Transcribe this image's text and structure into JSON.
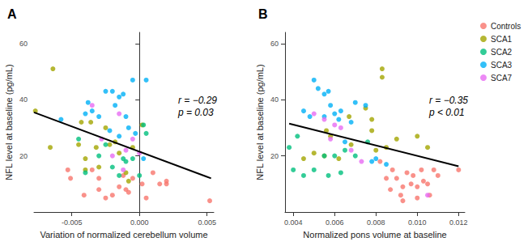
{
  "chart_data": [
    {
      "type": "scatter",
      "title": "A",
      "x_label": "Variation of normalized cerebellum volume",
      "y_label": "NFL level at baseline (pg/mL)",
      "xlim": [
        -0.0078,
        0.0055
      ],
      "xticks": [
        -0.005,
        {
          "value": 0,
          "label": "0.000"
        },
        0.005
      ],
      "ylim": [
        0,
        64
      ],
      "yticks": [
        20,
        40,
        60
      ],
      "grid": false,
      "legend": "right",
      "annotations": [
        "r = −0.29",
        "p = 0.03"
      ],
      "fit": {
        "x": [
          -0.0078,
          0.0053
        ],
        "y": [
          35.5,
          12
        ]
      },
      "series": [
        {
          "name": "Controls",
          "color": "#F8766D",
          "x": [
            -0.0053,
            -0.0051,
            -0.0041,
            -0.0035,
            -0.003,
            -0.003,
            -0.002,
            -0.0015,
            -0.001,
            -0.0008,
            -0.0005,
            0.0002,
            0.0005,
            0.001,
            0.0015,
            0.002,
            0.002,
            0.0052,
            -0.0025,
            -0.0012
          ],
          "y": [
            15,
            12,
            6,
            15,
            8,
            12,
            6,
            9,
            8,
            7,
            12,
            10,
            5,
            14,
            10,
            10,
            11,
            4,
            5,
            13
          ]
        },
        {
          "name": "SCA1",
          "color": "#A3A500",
          "x": [
            -0.0077,
            -0.0066,
            -0.0064,
            -0.0045,
            -0.0043,
            -0.004,
            -0.0036,
            -0.0032,
            -0.0025,
            -0.0022,
            -0.0018,
            -0.0015,
            -0.001,
            -0.0008,
            -0.0005,
            0.0002,
            -0.004,
            -0.003
          ],
          "y": [
            36,
            23,
            51,
            24,
            32,
            19,
            32,
            23,
            30,
            24,
            25,
            21,
            14,
            11,
            23,
            31,
            15,
            16
          ]
        },
        {
          "name": "SCA2",
          "color": "#00BF7D",
          "x": [
            -0.0045,
            -0.004,
            -0.003,
            -0.0025,
            -0.002,
            -0.0015,
            -0.001,
            -0.0005,
            0.0003,
            0.0005,
            -0.0012,
            0.0
          ],
          "y": [
            26,
            14,
            20,
            24,
            16,
            13,
            18,
            19,
            31,
            28,
            19,
            13
          ]
        },
        {
          "name": "SCA3",
          "color": "#00B0F6",
          "x": [
            -0.0058,
            -0.004,
            -0.0038,
            -0.0035,
            -0.003,
            -0.0025,
            -0.002,
            -0.0018,
            -0.0015,
            -0.0012,
            -0.001,
            -0.0008,
            -0.0005,
            -0.0003,
            0.0005,
            0.0003,
            -0.0015,
            -0.0022
          ],
          "y": [
            33,
            35,
            39,
            36,
            34,
            43,
            43,
            38,
            41,
            42,
            34,
            30,
            47,
            28,
            47,
            19,
            27,
            29
          ]
        },
        {
          "name": "SCA7",
          "color": "#E76BF3",
          "x": [
            -0.0035,
            -0.0028,
            -0.002,
            -0.0015,
            -0.001,
            -0.0005,
            0.0,
            -0.0012
          ],
          "y": [
            38,
            26,
            20,
            35,
            22,
            26,
            21,
            15
          ]
        }
      ]
    },
    {
      "type": "scatter",
      "title": "B",
      "x_label": "Normalized pons volume at baseline",
      "y_label": "NFL level at baseline (pg/mL)",
      "xlim": [
        0.0036,
        0.0123
      ],
      "xticks": [
        0.004,
        0.006,
        0.008,
        {
          "value": 0.01,
          "label": "0.010"
        },
        0.012
      ],
      "ylim": [
        0,
        64
      ],
      "yticks": [
        20,
        40,
        60
      ],
      "grid": false,
      "annotations": [
        "r = −0.35",
        "p < 0.01"
      ],
      "fit": {
        "x": [
          0.0038,
          0.012
        ],
        "y": [
          31.5,
          16.3
        ]
      },
      "series": [
        {
          "name": "Controls",
          "color": "#F8766D",
          "x": [
            0.0082,
            0.0085,
            0.0087,
            0.0088,
            0.009,
            0.0092,
            0.0093,
            0.0095,
            0.0097,
            0.0098,
            0.01,
            0.01,
            0.0102,
            0.0103,
            0.0105,
            0.0108,
            0.011,
            0.012,
            0.0093,
            0.0106
          ],
          "y": [
            18,
            12,
            8,
            15,
            12,
            6,
            9,
            14,
            10,
            13,
            9,
            5,
            15,
            11,
            10,
            15,
            13,
            15,
            4,
            6
          ]
        },
        {
          "name": "SCA1",
          "color": "#A3A500",
          "x": [
            0.0045,
            0.005,
            0.0055,
            0.0058,
            0.0062,
            0.0068,
            0.0075,
            0.0078,
            0.008,
            0.0083,
            0.0085,
            0.009,
            0.01,
            0.0105,
            0.0083,
            0.0067,
            0.0078,
            0.0056
          ],
          "y": [
            19,
            21,
            20,
            27,
            19,
            24,
            37,
            29,
            22,
            51,
            23,
            26,
            27,
            23,
            48,
            34,
            33,
            29
          ]
        },
        {
          "name": "SCA2",
          "color": "#00BF7D",
          "x": [
            0.0038,
            0.004,
            0.0042,
            0.0045,
            0.005,
            0.0055,
            0.0057,
            0.006,
            0.0063,
            0.0065,
            0.007,
            0.0076
          ],
          "y": [
            23,
            15,
            27,
            13,
            15,
            20,
            13,
            20,
            14,
            22,
            20,
            25
          ]
        },
        {
          "name": "SCA3",
          "color": "#00B0F6",
          "x": [
            0.0045,
            0.0048,
            0.005,
            0.0052,
            0.0055,
            0.0055,
            0.0057,
            0.006,
            0.0062,
            0.0063,
            0.0065,
            0.007,
            0.0075,
            0.0078,
            0.008,
            0.0085,
            0.0058,
            0.0068
          ],
          "y": [
            36,
            34,
            47,
            44,
            42,
            34,
            43,
            35,
            33,
            36,
            25,
            39,
            38,
            18,
            19,
            17,
            38,
            32
          ]
        },
        {
          "name": "SCA7",
          "color": "#E76BF3",
          "x": [
            0.005,
            0.0055,
            0.0058,
            0.0063,
            0.0068,
            0.0073,
            0.0105,
            0.006
          ],
          "y": [
            35,
            33,
            26,
            30,
            22,
            18,
            6,
            31
          ]
        }
      ]
    }
  ]
}
